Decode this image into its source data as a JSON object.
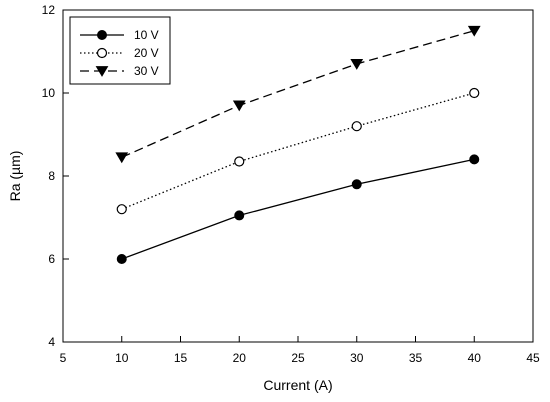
{
  "chart_data": {
    "type": "line",
    "title": "",
    "xlabel": "Current (A)",
    "ylabel": "Ra (µm)",
    "xlim": [
      5,
      45
    ],
    "ylim": [
      4,
      12
    ],
    "xticks": [
      "5",
      "10",
      "15",
      "20",
      "25",
      "30",
      "35",
      "40",
      "45"
    ],
    "yticks": [
      "4",
      "6",
      "8",
      "10",
      "12"
    ],
    "grid": false,
    "legend_position": "top-left",
    "x": [
      10,
      20,
      30,
      40
    ],
    "series": [
      {
        "name": "10 V",
        "values": [
          6.0,
          7.05,
          7.8,
          8.4
        ],
        "line_style": "solid",
        "marker": "filled-circle",
        "color": "#000000"
      },
      {
        "name": "20 V",
        "values": [
          7.2,
          8.35,
          9.2,
          10.0
        ],
        "line_style": "dotted",
        "marker": "open-circle",
        "color": "#000000"
      },
      {
        "name": "30 V",
        "values": [
          8.45,
          9.7,
          10.7,
          11.5
        ],
        "line_style": "dashed",
        "marker": "filled-triangle-down",
        "color": "#000000"
      }
    ]
  }
}
